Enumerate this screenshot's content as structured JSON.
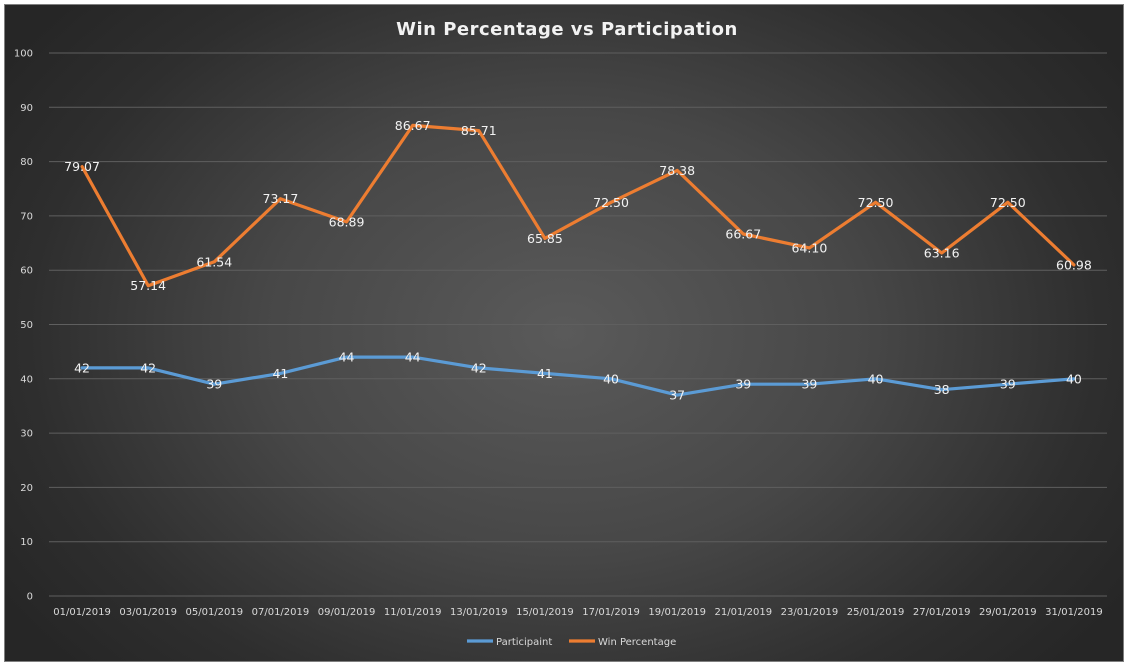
{
  "chart_data": {
    "type": "line",
    "title": "Win Percentage vs Participation",
    "xlabel": "",
    "ylabel": "",
    "ylim": [
      0,
      100
    ],
    "yticks": [
      "0",
      "10",
      "20",
      "30",
      "40",
      "50",
      "60",
      "70",
      "80",
      "90",
      "100"
    ],
    "grid": true,
    "legend_position": "bottom",
    "categories": [
      "01/01/2019",
      "03/01/2019",
      "05/01/2019",
      "07/01/2019",
      "09/01/2019",
      "11/01/2019",
      "13/01/2019",
      "15/01/2019",
      "17/01/2019",
      "19/01/2019",
      "21/01/2019",
      "23/01/2019",
      "25/01/2019",
      "27/01/2019",
      "29/01/2019",
      "31/01/2019"
    ],
    "series": [
      {
        "name": "Participaint",
        "color": "#5b9bd5",
        "values": [
          42,
          42,
          39,
          41,
          44,
          44,
          42,
          41,
          40,
          37,
          39,
          39,
          40,
          38,
          39,
          40
        ],
        "labels": [
          "42",
          "42",
          "39",
          "41",
          "44",
          "44",
          "42",
          "41",
          "40",
          "37",
          "39",
          "39",
          "40",
          "38",
          "39",
          "40"
        ]
      },
      {
        "name": "Win Percentage",
        "color": "#ed7d31",
        "values": [
          79.07,
          57.14,
          61.54,
          73.17,
          68.89,
          86.67,
          85.71,
          65.85,
          72.5,
          78.38,
          66.67,
          64.1,
          72.5,
          63.16,
          72.5,
          60.98
        ],
        "labels": [
          "79.07",
          "57.14",
          "61.54",
          "73.17",
          "68.89",
          "86.67",
          "85.71",
          "65.85",
          "72.50",
          "78.38",
          "66.67",
          "64.10",
          "72.50",
          "63.16",
          "72.50",
          "60.98"
        ]
      }
    ]
  }
}
